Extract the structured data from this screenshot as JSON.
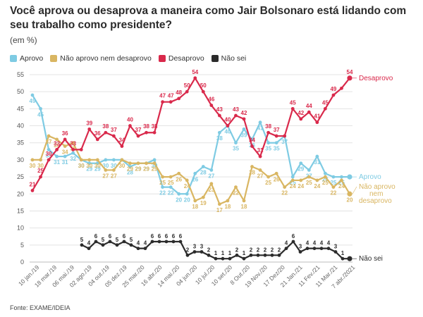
{
  "title": "Você aprova ou desaprova a maneira como Jair Bolsonaro está lidando com seu trabalho como presidente?",
  "subtitle": "(em %)",
  "source": "Fonte: EXAME/IDEIA",
  "chart_data": {
    "type": "line",
    "title": "Você aprova ou desaprova a maneira como Jair Bolsonaro está lidando com seu trabalho como presidente?",
    "ylim": [
      0,
      55
    ],
    "yticks": [
      0,
      5,
      10,
      15,
      20,
      25,
      30,
      35,
      40,
      45,
      50,
      55
    ],
    "grid": true,
    "legend_position": "top-left",
    "x_tick_labels": [
      "10 jan./19",
      "18 mar./19",
      "06 mai./19",
      "02 ago./19",
      "04 out./19",
      "05 dez./19",
      "25 mar./20",
      "16 abr./20",
      "14 mai./20",
      "04 jun./20",
      "10 jul./20",
      "10 set./20",
      "8 Out./20",
      "19 Nov./20",
      "17 Dez/20",
      "21 Jan./21",
      "11 Fev./21",
      "11 Mar./21",
      "7 abr./2021"
    ],
    "series": [
      {
        "name": "Aprovo",
        "end_label": "Aprovo",
        "color": "#7ecbe3",
        "points": [
          [
            0,
            49
          ],
          [
            1,
            45
          ],
          [
            2,
            33
          ],
          [
            3,
            31
          ],
          [
            4,
            31
          ],
          [
            5,
            32
          ],
          [
            6,
            30
          ],
          [
            7,
            29
          ],
          [
            8,
            29
          ],
          [
            9,
            30
          ],
          [
            10,
            30
          ],
          [
            11,
            30
          ],
          [
            12,
            28
          ],
          [
            13,
            29
          ],
          [
            14,
            29
          ],
          [
            15,
            30
          ],
          [
            16,
            22
          ],
          [
            17,
            22
          ],
          [
            18,
            20
          ],
          [
            19,
            20
          ],
          [
            20,
            26
          ],
          [
            21,
            28
          ],
          [
            22,
            27
          ],
          [
            23,
            38
          ],
          [
            24,
            40
          ],
          [
            25,
            35
          ],
          [
            26,
            39
          ],
          [
            27,
            36
          ],
          [
            28,
            41
          ],
          [
            29,
            35
          ],
          [
            30,
            35
          ],
          [
            31,
            37
          ],
          [
            32,
            25
          ],
          [
            33,
            29
          ],
          [
            34,
            27
          ],
          [
            35,
            31
          ],
          [
            36,
            26
          ],
          [
            37,
            25
          ],
          [
            38,
            25
          ],
          [
            39,
            25
          ]
        ],
        "labels": [
          [
            0,
            49
          ],
          [
            1,
            45
          ],
          [
            2,
            33
          ],
          [
            3,
            31
          ],
          [
            4,
            31
          ],
          [
            5,
            32
          ],
          [
            6,
            30
          ],
          [
            7,
            29
          ],
          [
            8,
            29
          ],
          [
            9,
            30
          ],
          [
            10,
            30
          ],
          [
            12,
            28
          ],
          [
            13,
            29
          ],
          [
            14,
            29
          ],
          [
            15,
            30
          ],
          [
            16,
            22
          ],
          [
            17,
            22
          ],
          [
            18,
            20
          ],
          [
            19,
            20
          ],
          [
            20,
            26
          ],
          [
            21,
            28
          ],
          [
            22,
            27
          ],
          [
            23,
            38
          ],
          [
            24,
            40
          ],
          [
            25,
            35
          ],
          [
            26,
            39
          ],
          [
            27,
            36
          ],
          [
            28,
            41
          ],
          [
            29,
            35
          ],
          [
            30,
            35
          ],
          [
            31,
            37
          ],
          [
            32,
            25
          ],
          [
            33,
            29
          ],
          [
            34,
            27
          ],
          [
            35,
            31
          ],
          [
            36,
            26
          ],
          [
            37,
            25
          ],
          [
            38,
            25
          ]
        ]
      },
      {
        "name": "Não aprovo nem desaprovo",
        "end_label": "Não aprovo nem desaprovo",
        "color": "#d9b662",
        "points": [
          [
            0,
            30
          ],
          [
            1,
            30
          ],
          [
            2,
            37
          ],
          [
            3,
            36
          ],
          [
            4,
            34
          ],
          [
            5,
            35
          ],
          [
            6,
            30
          ],
          [
            7,
            30
          ],
          [
            8,
            30
          ],
          [
            9,
            27
          ],
          [
            10,
            27
          ],
          [
            11,
            30
          ],
          [
            12,
            29
          ],
          [
            13,
            29
          ],
          [
            14,
            29
          ],
          [
            15,
            29
          ],
          [
            16,
            25
          ],
          [
            17,
            25
          ],
          [
            18,
            26
          ],
          [
            19,
            24
          ],
          [
            20,
            18
          ],
          [
            21,
            19
          ],
          [
            22,
            23
          ],
          [
            23,
            17
          ],
          [
            24,
            18
          ],
          [
            25,
            22
          ],
          [
            26,
            18
          ],
          [
            27,
            28
          ],
          [
            28,
            27
          ],
          [
            29,
            25
          ],
          [
            30,
            26
          ],
          [
            31,
            22
          ],
          [
            32,
            24
          ],
          [
            33,
            24
          ],
          [
            34,
            25
          ],
          [
            35,
            24
          ],
          [
            36,
            25
          ],
          [
            37,
            22
          ],
          [
            38,
            24
          ],
          [
            39,
            20
          ]
        ],
        "labels": [
          [
            0,
            30
          ],
          [
            1,
            30
          ],
          [
            2,
            37
          ],
          [
            3,
            36
          ],
          [
            4,
            34
          ],
          [
            5,
            35
          ],
          [
            6,
            30
          ],
          [
            7,
            30
          ],
          [
            8,
            30
          ],
          [
            9,
            27
          ],
          [
            10,
            27
          ],
          [
            11,
            30
          ],
          [
            12,
            29
          ],
          [
            13,
            29
          ],
          [
            14,
            29
          ],
          [
            15,
            29
          ],
          [
            16,
            25
          ],
          [
            17,
            25
          ],
          [
            18,
            26
          ],
          [
            19,
            24
          ],
          [
            20,
            18
          ],
          [
            21,
            19
          ],
          [
            22,
            23
          ],
          [
            23,
            17
          ],
          [
            24,
            18
          ],
          [
            25,
            22
          ],
          [
            26,
            18
          ],
          [
            27,
            28
          ],
          [
            28,
            27
          ],
          [
            29,
            25
          ],
          [
            30,
            26
          ],
          [
            31,
            22
          ],
          [
            32,
            24
          ],
          [
            33,
            24
          ],
          [
            34,
            25
          ],
          [
            35,
            24
          ],
          [
            36,
            25
          ],
          [
            37,
            22
          ],
          [
            38,
            24
          ],
          [
            39,
            20
          ]
        ]
      },
      {
        "name": "Desaprovo",
        "end_label": "Desaprovo",
        "color": "#d9294b",
        "points": [
          [
            0,
            21
          ],
          [
            1,
            25
          ],
          [
            2,
            30
          ],
          [
            3,
            33
          ],
          [
            4,
            36
          ],
          [
            5,
            33
          ],
          [
            6,
            33
          ],
          [
            7,
            39
          ],
          [
            8,
            36
          ],
          [
            9,
            38
          ],
          [
            10,
            37
          ],
          [
            11,
            34
          ],
          [
            12,
            40
          ],
          [
            13,
            37
          ],
          [
            14,
            38
          ],
          [
            15,
            38
          ],
          [
            16,
            47
          ],
          [
            17,
            47
          ],
          [
            18,
            48
          ],
          [
            19,
            50
          ],
          [
            20,
            54
          ],
          [
            21,
            50
          ],
          [
            22,
            46
          ],
          [
            23,
            43
          ],
          [
            24,
            40
          ],
          [
            25,
            43
          ],
          [
            26,
            42
          ],
          [
            27,
            34
          ],
          [
            28,
            31
          ],
          [
            29,
            38
          ],
          [
            30,
            37
          ],
          [
            31,
            37
          ],
          [
            32,
            45
          ],
          [
            33,
            42
          ],
          [
            34,
            44
          ],
          [
            35,
            41
          ],
          [
            36,
            45
          ],
          [
            37,
            49
          ],
          [
            38,
            51
          ],
          [
            39,
            54
          ]
        ],
        "labels": [
          [
            0,
            21
          ],
          [
            1,
            25
          ],
          [
            2,
            30
          ],
          [
            3,
            33
          ],
          [
            4,
            36
          ],
          [
            5,
            33
          ],
          [
            7,
            39
          ],
          [
            8,
            36
          ],
          [
            9,
            38
          ],
          [
            10,
            37
          ],
          [
            11,
            34
          ],
          [
            12,
            40
          ],
          [
            13,
            37
          ],
          [
            14,
            38
          ],
          [
            15,
            38
          ],
          [
            16,
            47
          ],
          [
            17,
            47
          ],
          [
            18,
            48
          ],
          [
            19,
            50
          ],
          [
            20,
            54
          ],
          [
            21,
            50
          ],
          [
            22,
            46
          ],
          [
            23,
            43
          ],
          [
            24,
            40
          ],
          [
            25,
            43
          ],
          [
            26,
            42
          ],
          [
            27,
            34
          ],
          [
            28,
            31
          ],
          [
            29,
            38
          ],
          [
            30,
            37
          ],
          [
            32,
            45
          ],
          [
            33,
            42
          ],
          [
            34,
            44
          ],
          [
            35,
            41
          ],
          [
            36,
            45
          ],
          [
            37,
            49
          ],
          [
            39,
            54
          ]
        ]
      },
      {
        "name": "Não sei",
        "end_label": "Não sei",
        "color": "#2b2b2b",
        "points": [
          [
            7,
            5
          ],
          [
            8,
            4
          ],
          [
            9,
            6
          ],
          [
            10,
            5
          ],
          [
            11,
            6
          ],
          [
            12,
            5
          ],
          [
            13,
            6
          ],
          [
            14,
            5
          ],
          [
            15,
            4
          ],
          [
            16,
            4
          ],
          [
            17,
            6
          ],
          [
            18,
            6
          ],
          [
            19,
            6
          ],
          [
            20,
            6
          ],
          [
            21,
            6
          ],
          [
            22,
            2
          ],
          [
            23,
            3
          ],
          [
            24,
            3
          ],
          [
            25,
            2
          ],
          [
            26,
            1
          ],
          [
            27,
            1
          ],
          [
            28,
            1
          ],
          [
            29,
            2
          ],
          [
            30,
            1
          ],
          [
            31,
            2
          ],
          [
            32,
            2
          ],
          [
            33,
            2
          ],
          [
            34,
            2
          ],
          [
            35,
            2
          ],
          [
            36,
            4
          ],
          [
            37,
            6
          ],
          [
            38,
            3
          ],
          [
            39,
            4
          ],
          [
            40,
            4
          ],
          [
            41,
            4
          ],
          [
            42,
            4
          ],
          [
            43,
            3
          ],
          [
            44,
            1
          ],
          [
            45,
            1
          ]
        ],
        "labels": [
          [
            7,
            5
          ],
          [
            8,
            4
          ],
          [
            9,
            6
          ],
          [
            10,
            5
          ],
          [
            11,
            6
          ],
          [
            12,
            5
          ],
          [
            13,
            6
          ],
          [
            14,
            5
          ],
          [
            15,
            4
          ],
          [
            16,
            4
          ],
          [
            17,
            6
          ],
          [
            18,
            6
          ],
          [
            19,
            6
          ],
          [
            20,
            6
          ],
          [
            21,
            6
          ],
          [
            22,
            2
          ],
          [
            23,
            3
          ],
          [
            24,
            3
          ],
          [
            25,
            2
          ],
          [
            26,
            1
          ],
          [
            27,
            1
          ],
          [
            28,
            1
          ],
          [
            29,
            2
          ],
          [
            30,
            1
          ],
          [
            31,
            2
          ],
          [
            32,
            2
          ],
          [
            33,
            2
          ],
          [
            34,
            2
          ],
          [
            35,
            2
          ],
          [
            36,
            4
          ],
          [
            37,
            6
          ],
          [
            38,
            3
          ],
          [
            39,
            4
          ],
          [
            40,
            4
          ],
          [
            41,
            4
          ],
          [
            42,
            4
          ],
          [
            43,
            3
          ],
          [
            44,
            1
          ]
        ]
      }
    ]
  }
}
